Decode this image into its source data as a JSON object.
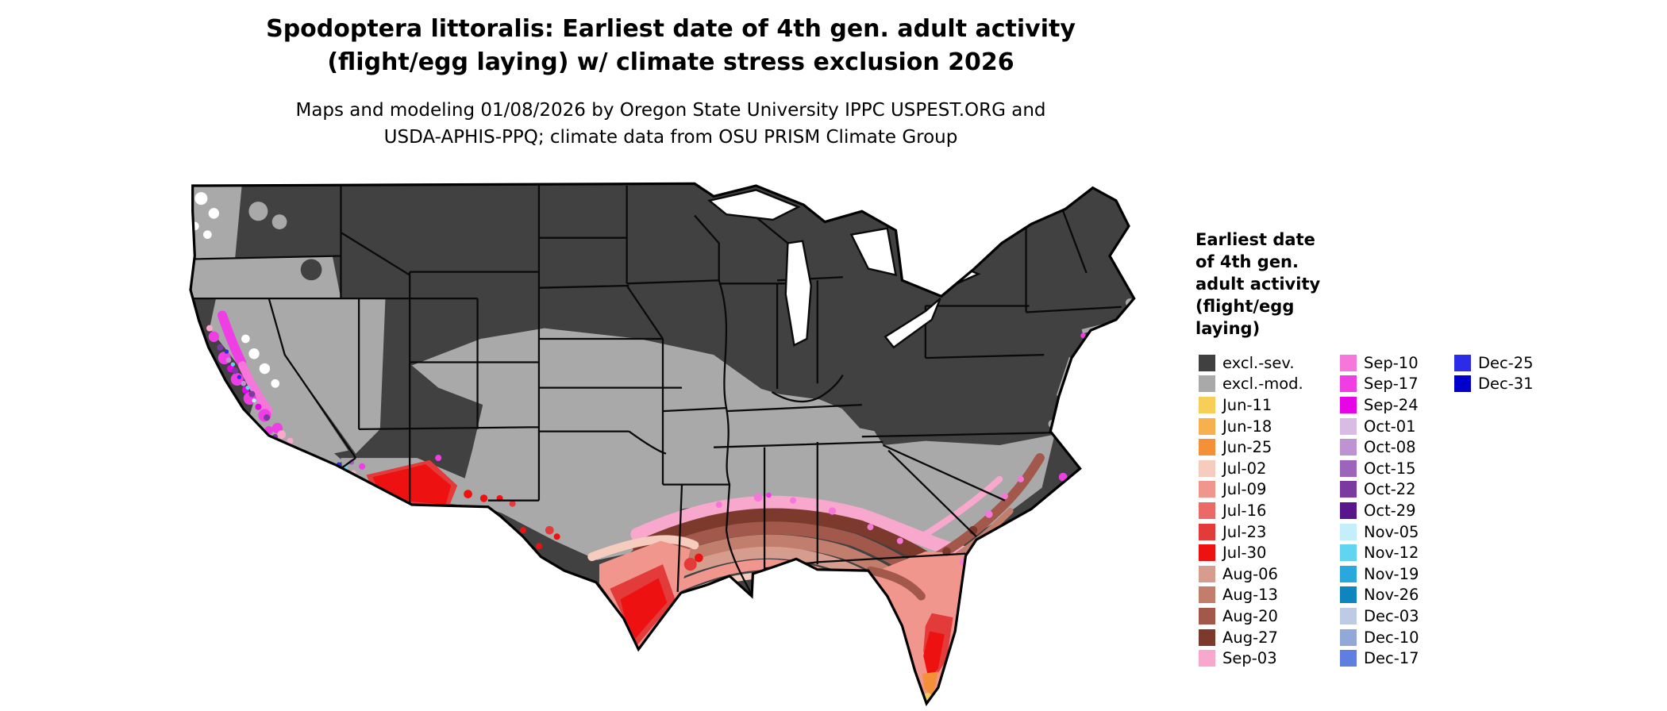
{
  "title": {
    "line1": "Spodoptera littoralis: Earliest date of 4th gen. adult activity",
    "line2": "(flight/egg laying) w/ climate stress exclusion 2026"
  },
  "subtitle": {
    "line1": "Maps and modeling 01/08/2026 by Oregon State University IPPC USPEST.ORG and",
    "line2": "USDA-APHIS-PPQ; climate data from OSU PRISM Climate Group"
  },
  "map": {
    "description": "Choropleth map of the continental United States showing earliest date of 4th generation adult activity with climate stress exclusion zones"
  },
  "legend": {
    "title_lines": [
      "Earliest date",
      "of 4th gen.",
      "adult activity",
      "(flight/egg",
      "laying)"
    ],
    "columns": [
      {
        "items": [
          {
            "label": "excl.-sev.",
            "color": "#404040"
          },
          {
            "label": "excl.-mod.",
            "color": "#A9A9A9"
          },
          {
            "label": "Jun-11",
            "color": "#F7CE57"
          },
          {
            "label": "Jun-18",
            "color": "#F6B04E"
          },
          {
            "label": "Jun-25",
            "color": "#F49038"
          },
          {
            "label": "Jul-02",
            "color": "#F6CCBE"
          },
          {
            "label": "Jul-09",
            "color": "#F0968C"
          },
          {
            "label": "Jul-16",
            "color": "#E96A67"
          },
          {
            "label": "Jul-23",
            "color": "#E33A3A"
          },
          {
            "label": "Jul-30",
            "color": "#EE1111"
          },
          {
            "label": "Aug-06",
            "color": "#D69C8E"
          },
          {
            "label": "Aug-13",
            "color": "#C17E6D"
          },
          {
            "label": "Aug-20",
            "color": "#A2584A"
          },
          {
            "label": "Aug-27",
            "color": "#7C3A2C"
          },
          {
            "label": "Sep-03",
            "color": "#F7A8CC"
          }
        ]
      },
      {
        "items": [
          {
            "label": "Sep-10",
            "color": "#F676D9"
          },
          {
            "label": "Sep-17",
            "color": "#EF3EE4"
          },
          {
            "label": "Sep-24",
            "color": "#E705E7"
          },
          {
            "label": "Oct-01",
            "color": "#D9BCE3"
          },
          {
            "label": "Oct-08",
            "color": "#BD93D2"
          },
          {
            "label": "Oct-15",
            "color": "#9C64BA"
          },
          {
            "label": "Oct-22",
            "color": "#7A3AA0"
          },
          {
            "label": "Oct-29",
            "color": "#59168C"
          },
          {
            "label": "Nov-05",
            "color": "#C2EFFA"
          },
          {
            "label": "Nov-12",
            "color": "#62D4F1"
          },
          {
            "label": "Nov-19",
            "color": "#28A8DC"
          },
          {
            "label": "Nov-26",
            "color": "#0E85BC"
          },
          {
            "label": "Dec-03",
            "color": "#BECBE4"
          },
          {
            "label": "Dec-10",
            "color": "#92A8D6"
          },
          {
            "label": "Dec-17",
            "color": "#5E7EE0"
          }
        ]
      },
      {
        "items": [
          {
            "label": "Dec-25",
            "color": "#2B2BE8"
          },
          {
            "label": "Dec-31",
            "color": "#0000CC"
          }
        ]
      }
    ]
  }
}
